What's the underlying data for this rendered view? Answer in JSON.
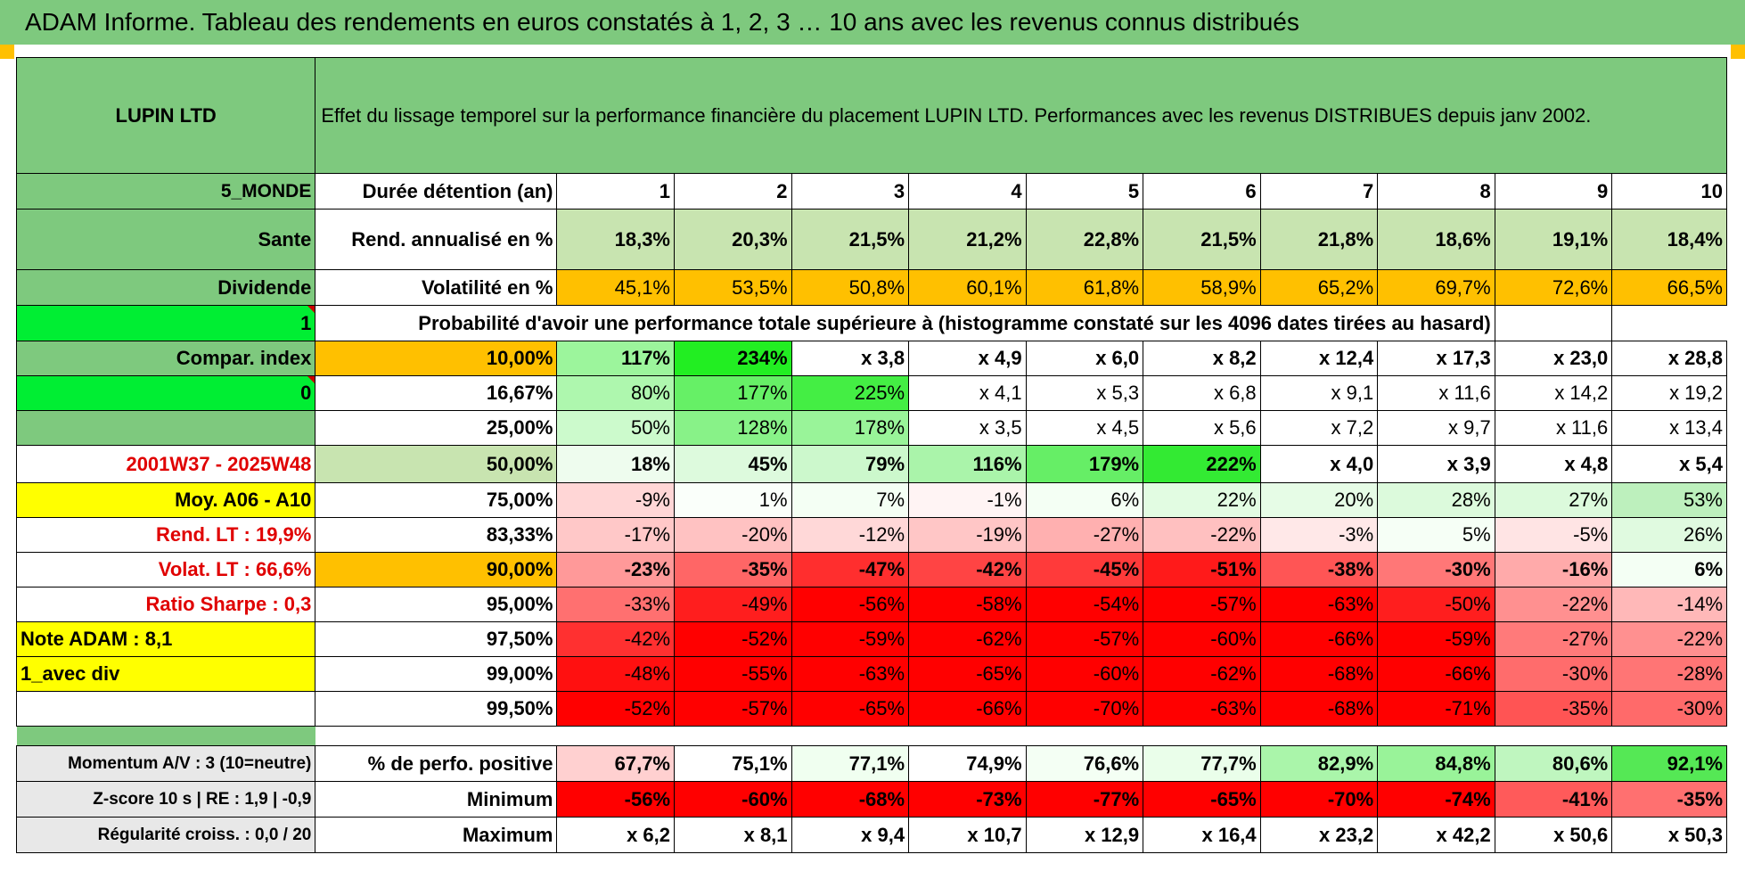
{
  "header_bar": "ADAM Informe. Tableau des rendements en euros constatés à 1, 2, 3 … 10 ans avec les revenus connus distribués",
  "table": {
    "name": "LUPIN LTD",
    "title": "Effet du lissage temporel sur la performance financière du placement LUPIN LTD. Performances avec les revenus DISTRIBUES depuis janv 2002.",
    "duration_label": "Durée détention (an)",
    "years": [
      "1",
      "2",
      "3",
      "4",
      "5",
      "6",
      "7",
      "8",
      "9",
      "10"
    ],
    "side": {
      "region": "5_MONDE",
      "sector": "Sante",
      "type": "Dividende",
      "flag1": "1",
      "compar_index": "Compar. index",
      "flag0": "0",
      "period": "2001W37 - 2025W48",
      "moy": "Moy. A06 - A10",
      "rend_lt": "Rend. LT :    19,9%",
      "volat_lt": "Volat. LT :    66,6%",
      "sharpe": "Ratio Sharpe :     0,3",
      "note": "Note ADAM : 8,1",
      "avec_div": "1_avec div"
    },
    "rend_label": "Rend. annualisé en %",
    "rend_values": [
      "18,3%",
      "20,3%",
      "21,5%",
      "21,2%",
      "22,8%",
      "21,5%",
      "21,8%",
      "18,6%",
      "19,1%",
      "18,4%"
    ],
    "vol_label": "Volatilité en %",
    "vol_values": [
      "45,1%",
      "53,5%",
      "50,8%",
      "60,1%",
      "61,8%",
      "58,9%",
      "65,2%",
      "69,7%",
      "72,6%",
      "66,5%"
    ],
    "prob_label": "Probabilité d'avoir une performance totale supérieure à (histogramme constaté sur les 4096 dates tirées au hasard)",
    "quantiles": [
      {
        "p": "10,00%",
        "v": [
          "117%",
          "234%",
          "x 3,8",
          "x 4,9",
          "x 6,0",
          "x 8,2",
          "x 12,4",
          "x 17,3",
          "x 23,0",
          "x 28,8"
        ]
      },
      {
        "p": "16,67%",
        "v": [
          "80%",
          "177%",
          "225%",
          "x 4,1",
          "x 5,3",
          "x 6,8",
          "x 9,1",
          "x 11,6",
          "x 14,2",
          "x 19,2"
        ]
      },
      {
        "p": "25,00%",
        "v": [
          "50%",
          "128%",
          "178%",
          "x 3,5",
          "x 4,5",
          "x 5,6",
          "x 7,2",
          "x 9,7",
          "x 11,6",
          "x 13,4"
        ]
      },
      {
        "p": "50,00%",
        "v": [
          "18%",
          "45%",
          "79%",
          "116%",
          "179%",
          "222%",
          "x 4,0",
          "x 3,9",
          "x 4,8",
          "x 5,4"
        ]
      },
      {
        "p": "75,00%",
        "v": [
          "-9%",
          "1%",
          "7%",
          "-1%",
          "6%",
          "22%",
          "20%",
          "28%",
          "27%",
          "53%"
        ]
      },
      {
        "p": "83,33%",
        "v": [
          "-17%",
          "-20%",
          "-12%",
          "-19%",
          "-27%",
          "-22%",
          "-3%",
          "5%",
          "-5%",
          "26%"
        ]
      },
      {
        "p": "90,00%",
        "v": [
          "-23%",
          "-35%",
          "-47%",
          "-42%",
          "-45%",
          "-51%",
          "-38%",
          "-30%",
          "-16%",
          "6%"
        ]
      },
      {
        "p": "95,00%",
        "v": [
          "-33%",
          "-49%",
          "-56%",
          "-58%",
          "-54%",
          "-57%",
          "-63%",
          "-50%",
          "-22%",
          "-14%"
        ]
      },
      {
        "p": "97,50%",
        "v": [
          "-42%",
          "-52%",
          "-59%",
          "-62%",
          "-57%",
          "-60%",
          "-66%",
          "-59%",
          "-27%",
          "-22%"
        ]
      },
      {
        "p": "99,00%",
        "v": [
          "-48%",
          "-55%",
          "-63%",
          "-65%",
          "-60%",
          "-62%",
          "-68%",
          "-66%",
          "-30%",
          "-28%"
        ]
      },
      {
        "p": "99,50%",
        "v": [
          "-52%",
          "-57%",
          "-65%",
          "-66%",
          "-70%",
          "-63%",
          "-68%",
          "-71%",
          "-35%",
          "-30%"
        ]
      }
    ],
    "bottom": [
      {
        "side": "Momentum A/V : 3 (10=neutre)",
        "label": "% de perfo. positive",
        "v": [
          "67,7%",
          "75,1%",
          "77,1%",
          "74,9%",
          "76,6%",
          "77,7%",
          "82,9%",
          "84,8%",
          "80,6%",
          "92,1%"
        ]
      },
      {
        "side": "Z-score 10 s | RE : 1,9 | -0,9",
        "label": "Minimum",
        "v": [
          "-56%",
          "-60%",
          "-68%",
          "-73%",
          "-77%",
          "-65%",
          "-70%",
          "-74%",
          "-41%",
          "-35%"
        ]
      },
      {
        "side": "Régularité croiss. : 0,0 / 20",
        "label": "Maximum",
        "v": [
          "x 6,2",
          "x 8,1",
          "x 9,4",
          "x 10,7",
          "x 12,9",
          "x 16,4",
          "x 23,2",
          "x 42,2",
          "x 50,6",
          "x 50,3"
        ]
      }
    ],
    "cell_colors": {
      "quantiles": [
        [
          "#9cf59c",
          "#22ee22",
          "#ffffff",
          "#ffffff",
          "#ffffff",
          "#ffffff",
          "#ffffff",
          "#ffffff",
          "#ffffff",
          "#ffffff"
        ],
        [
          "#aef7ae",
          "#66f066",
          "#44ee44",
          "#ffffff",
          "#ffffff",
          "#ffffff",
          "#ffffff",
          "#ffffff",
          "#ffffff",
          "#ffffff"
        ],
        [
          "#ccfacc",
          "#88f288",
          "#99f499",
          "#ffffff",
          "#ffffff",
          "#ffffff",
          "#ffffff",
          "#ffffff",
          "#ffffff",
          "#ffffff"
        ],
        [
          "#eefcee",
          "#ddfadd",
          "#ccf8cc",
          "#aaf4aa",
          "#66ee66",
          "#33ea33",
          "#ffffff",
          "#ffffff",
          "#ffffff",
          "#ffffff"
        ],
        [
          "#ffd6d6",
          "#fafffa",
          "#f4fff4",
          "#fff4f4",
          "#f4fff4",
          "#e2fce2",
          "#e6fce6",
          "#dcfadc",
          "#dcfadc",
          "#bdf0bd"
        ],
        [
          "#ffc8c8",
          "#ffc2c2",
          "#ffd8d8",
          "#ffc6c6",
          "#ffb0b0",
          "#ffc0c0",
          "#ffe8e8",
          "#f6fff6",
          "#ffe4e4",
          "#e0fae0"
        ],
        [
          "#ff9999",
          "#ff6666",
          "#ff2e2e",
          "#ff4444",
          "#ff3a3a",
          "#ff1a1a",
          "#ff5555",
          "#ff7777",
          "#ffaaaa",
          "#f4fff4"
        ],
        [
          "#ff7070",
          "#ff1e1e",
          "#ff0000",
          "#ff0000",
          "#ff0000",
          "#ff0000",
          "#ff0000",
          "#ff1e1e",
          "#ff9090",
          "#ffb8b8"
        ],
        [
          "#ff3030",
          "#ff0000",
          "#ff0000",
          "#ff0000",
          "#ff0000",
          "#ff0000",
          "#ff0000",
          "#ff0000",
          "#ff7a7a",
          "#ff9090"
        ],
        [
          "#ff1010",
          "#ff0000",
          "#ff0000",
          "#ff0000",
          "#ff0000",
          "#ff0000",
          "#ff0000",
          "#ff0000",
          "#ff6c6c",
          "#ff7575"
        ],
        [
          "#ff0000",
          "#ff0000",
          "#ff0000",
          "#ff0000",
          "#ff0000",
          "#ff0000",
          "#ff0000",
          "#ff0000",
          "#ff5454",
          "#ff6a6a"
        ]
      ],
      "bottom": [
        [
          "#ffd0d0",
          "#ffffff",
          "#f0fff0",
          "#ffffff",
          "#f4fff4",
          "#eafeea",
          "#aaf5aa",
          "#99f399",
          "#bff6bf",
          "#55e855"
        ],
        [
          "#ff0000",
          "#ff0000",
          "#ff0000",
          "#ff0000",
          "#ff0000",
          "#ff0000",
          "#ff0000",
          "#ff0000",
          "#ff5a5a",
          "#ff7070"
        ],
        [
          "#ffffff",
          "#ffffff",
          "#ffffff",
          "#ffffff",
          "#ffffff",
          "#ffffff",
          "#ffffff",
          "#ffffff",
          "#ffffff",
          "#ffffff"
        ]
      ]
    }
  }
}
